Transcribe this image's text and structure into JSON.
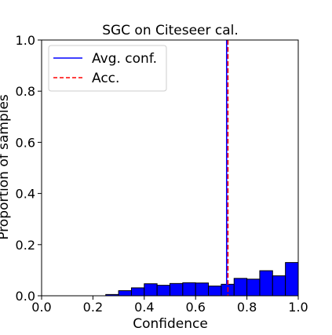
{
  "chart_data": {
    "type": "bar",
    "title": "SGC on Citeseer cal.",
    "xlabel": "Confidence",
    "ylabel": "Proportion of samples",
    "xlim": [
      0.0,
      1.0
    ],
    "ylim": [
      0.0,
      1.0
    ],
    "xticks": [
      "0.0",
      "0.2",
      "0.4",
      "0.6",
      "0.8",
      "1.0"
    ],
    "yticks": [
      "0.0",
      "0.2",
      "0.4",
      "0.6",
      "0.8",
      "1.0"
    ],
    "grid": false,
    "legend_position": "upper-left",
    "bin_width": 0.05,
    "bins": [
      {
        "x": 0.2,
        "value": 0.0
      },
      {
        "x": 0.25,
        "value": 0.005
      },
      {
        "x": 0.3,
        "value": 0.02
      },
      {
        "x": 0.35,
        "value": 0.031
      },
      {
        "x": 0.4,
        "value": 0.047
      },
      {
        "x": 0.45,
        "value": 0.041
      },
      {
        "x": 0.5,
        "value": 0.048
      },
      {
        "x": 0.55,
        "value": 0.051
      },
      {
        "x": 0.6,
        "value": 0.05
      },
      {
        "x": 0.65,
        "value": 0.038
      },
      {
        "x": 0.7,
        "value": 0.045
      },
      {
        "x": 0.75,
        "value": 0.068
      },
      {
        "x": 0.8,
        "value": 0.065
      },
      {
        "x": 0.85,
        "value": 0.098
      },
      {
        "x": 0.9,
        "value": 0.078
      },
      {
        "x": 0.95,
        "value": 0.13
      },
      {
        "x": 1.0,
        "value": 0.16
      }
    ],
    "series": [
      {
        "name": "Avg. conf.",
        "x": 0.721,
        "color": "#0000ff",
        "style": "solid"
      },
      {
        "name": "Acc.",
        "x": 0.726,
        "color": "#ff0000",
        "style": "dashed"
      }
    ],
    "bar_color": "#0000ff",
    "bar_edge_color": "#000000"
  }
}
